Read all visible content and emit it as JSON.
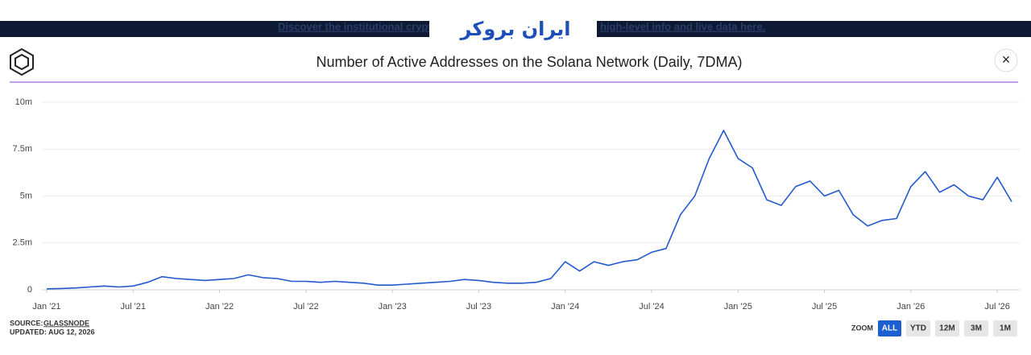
{
  "banner": {
    "left": "Discover the institutional crypt",
    "right": "high-level info and live data here.",
    "watermark": "ایران بروکر"
  },
  "chart_data": {
    "type": "line",
    "title": "Number of Active Addresses on the Solana Network (Daily, 7DMA)",
    "x": [
      "2021-01",
      "2021-02",
      "2021-03",
      "2021-04",
      "2021-05",
      "2021-06",
      "2021-07",
      "2021-08",
      "2021-09",
      "2021-10",
      "2021-11",
      "2021-12",
      "2022-01",
      "2022-02",
      "2022-03",
      "2022-04",
      "2022-05",
      "2022-06",
      "2022-07",
      "2022-08",
      "2022-09",
      "2022-10",
      "2022-11",
      "2022-12",
      "2023-01",
      "2023-02",
      "2023-03",
      "2023-04",
      "2023-05",
      "2023-06",
      "2023-07",
      "2023-08",
      "2023-09",
      "2023-10",
      "2023-11",
      "2023-12",
      "2024-01",
      "2024-02",
      "2024-03",
      "2024-04",
      "2024-05",
      "2024-06",
      "2024-07",
      "2024-08",
      "2024-09",
      "2024-10",
      "2024-11",
      "2024-12",
      "2025-01",
      "2025-02",
      "2025-03",
      "2025-04",
      "2025-05",
      "2025-06",
      "2025-07",
      "2025-08",
      "2025-09",
      "2025-10",
      "2025-11",
      "2025-12",
      "2026-01",
      "2026-02",
      "2026-03",
      "2026-04",
      "2026-05",
      "2026-06",
      "2026-07",
      "2026-08"
    ],
    "series": [
      {
        "name": "Active Addresses",
        "color": "#2259cf",
        "values": [
          50000,
          70000,
          100000,
          150000,
          200000,
          150000,
          200000,
          400000,
          700000,
          600000,
          550000,
          500000,
          550000,
          600000,
          800000,
          650000,
          600000,
          450000,
          450000,
          400000,
          450000,
          400000,
          350000,
          250000,
          250000,
          300000,
          350000,
          400000,
          450000,
          550000,
          500000,
          400000,
          350000,
          350000,
          400000,
          600000,
          1500000,
          1000000,
          1500000,
          1300000,
          1500000,
          1600000,
          2000000,
          2200000,
          4000000,
          5000000,
          7000000,
          8500000,
          7000000,
          6500000,
          4800000,
          4500000,
          5500000,
          5800000,
          5000000,
          5300000,
          4000000,
          3400000,
          3700000,
          3800000,
          5500000,
          6300000,
          5200000,
          5600000,
          5000000,
          4800000,
          6000000,
          4700000
        ]
      }
    ],
    "xlim": [
      "2021-01",
      "2026-08"
    ],
    "xticks": [
      {
        "value": "2021-01",
        "label": "Jan '21"
      },
      {
        "value": "2021-07",
        "label": "Jul '21"
      },
      {
        "value": "2022-01",
        "label": "Jan '22"
      },
      {
        "value": "2022-07",
        "label": "Jul '22"
      },
      {
        "value": "2023-01",
        "label": "Jan '23"
      },
      {
        "value": "2023-07",
        "label": "Jul '23"
      },
      {
        "value": "2024-01",
        "label": "Jan '24"
      },
      {
        "value": "2024-07",
        "label": "Jul '24"
      },
      {
        "value": "2025-01",
        "label": "Jan '25"
      },
      {
        "value": "2025-07",
        "label": "Jul '25"
      },
      {
        "value": "2026-01",
        "label": "Jan '26"
      },
      {
        "value": "2026-07",
        "label": "Jul '26"
      }
    ],
    "ylim": [
      0,
      10000000
    ],
    "yticks": [
      0,
      {
        "value": 2500000,
        "label": "2.5m"
      },
      {
        "value": 5000000,
        "label": "5m"
      },
      {
        "value": 7500000,
        "label": "7.5m"
      },
      {
        "value": 10000000,
        "label": "10m"
      }
    ],
    "grid": true
  },
  "footer": {
    "source_label": "SOURCE:",
    "source": "GLASSNODE",
    "updated": "UPDATED: AUG 12, 2026",
    "zoom_label": "ZOOM",
    "zoom": [
      "ALL",
      "YTD",
      "12M",
      "3M",
      "1M"
    ]
  },
  "close": "×"
}
